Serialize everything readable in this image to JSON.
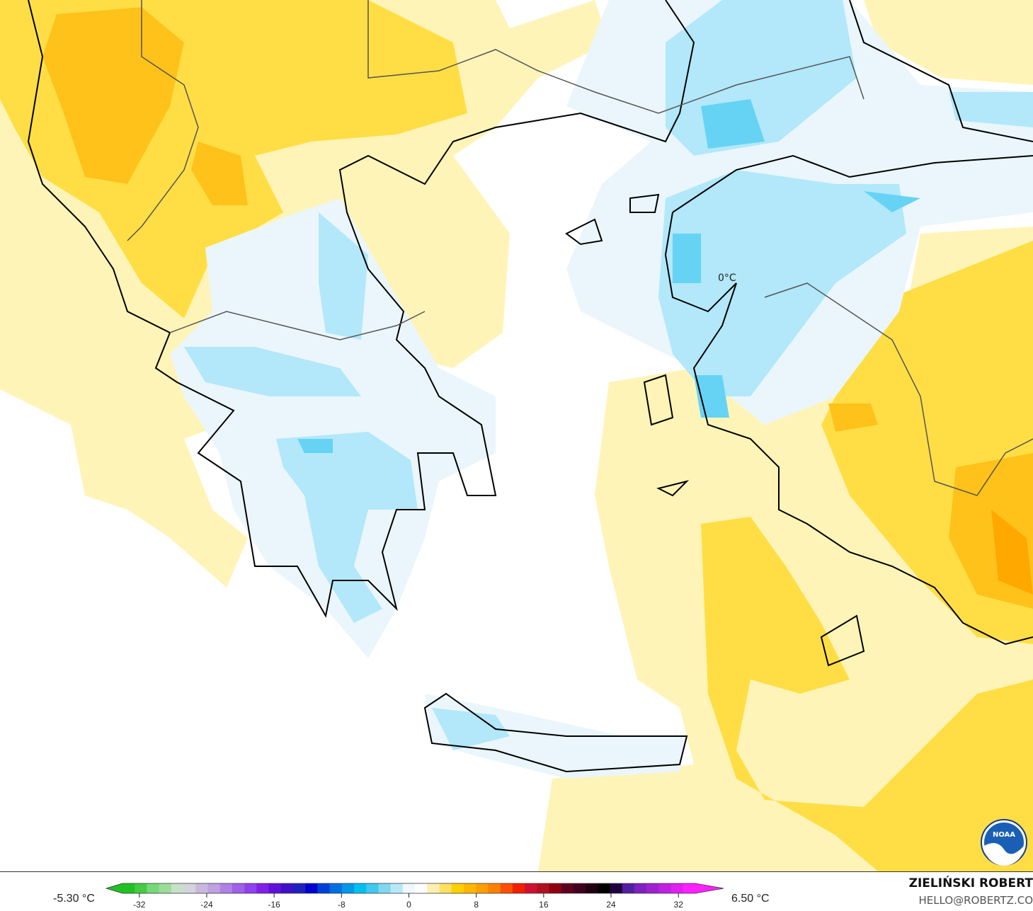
{
  "map": {
    "contour_label": "0°C",
    "fill_colors": {
      "light_yellow": "#fff4b8",
      "yellow": "#ffde45",
      "orange": "#ffc21a",
      "deep_orange": "#ffa800",
      "light_blue": "#eaf6fc",
      "blue": "#b2e8f9",
      "mid_blue": "#66d3f5",
      "coast": "#000000",
      "border": "#555555"
    },
    "logo": "NOAA"
  },
  "colorbar": {
    "min_label": "-5.30 °C",
    "max_label": "6.50 °C",
    "ticks": [
      "-32",
      "-24",
      "-16",
      "-8",
      "0",
      "8",
      "16",
      "24",
      "32"
    ],
    "tick_values": [
      -32,
      -24,
      -16,
      -8,
      0,
      8,
      16,
      24,
      32
    ],
    "range": [
      -34,
      34
    ],
    "colors": [
      "#22c022",
      "#44cc44",
      "#77d877",
      "#99dd99",
      "#c8e0c8",
      "#d4d4dc",
      "#c8b8e0",
      "#c0a0e0",
      "#b080e8",
      "#a060e8",
      "#9040f0",
      "#8020e8",
      "#6010d8",
      "#4010c8",
      "#2020c0",
      "#0000d0",
      "#0040d8",
      "#0070e0",
      "#0098e8",
      "#00c0f0",
      "#40c8f0",
      "#80d8f0",
      "#b8e8f8",
      "#f0f8fc",
      "#ffffff",
      "#fff0b0",
      "#ffe060",
      "#ffd000",
      "#ffb800",
      "#ffa000",
      "#ff8000",
      "#ff5000",
      "#f02000",
      "#d01030",
      "#b01020",
      "#900010",
      "#600020",
      "#400020",
      "#200010",
      "#000000",
      "#200040",
      "#5020a0",
      "#8020c0",
      "#a020d0",
      "#c020e0",
      "#e020f0",
      "#ff20ff"
    ]
  },
  "credit": {
    "name": "ZIELIŃSKI ROBERT",
    "email": "HELLO@ROBERTZ.CO"
  }
}
